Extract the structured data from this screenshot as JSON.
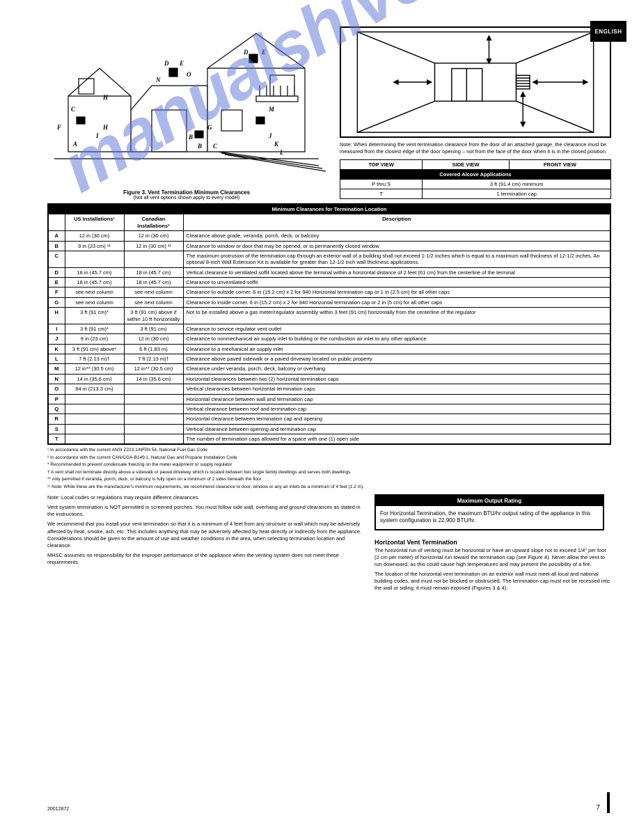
{
  "lang_tab": "ENGLISH",
  "house_fig": {
    "caption": "Figure 3. Vent Termination Minimum Clearances",
    "sub": "(Not all vent options shown apply to every model)",
    "labels": [
      "A",
      "B",
      "C",
      "D",
      "E",
      "F",
      "G",
      "H",
      "I",
      "J",
      "K",
      "L",
      "M",
      "N",
      "O"
    ]
  },
  "garage_fig": {
    "caption": "Note: When determining the vent termination clearance from the door of an attached garage, the clearance must be measured from the closest edge of the door opening – not from the face of the door when it is in the closed position.",
    "table_headers": [
      "TOP VIEW",
      "SIDE VIEW",
      "FRONT VIEW"
    ],
    "table_title": "Covered Alcove Applications",
    "row_labels": [
      "P thru S",
      "T"
    ],
    "row_vals": [
      "3 ft (91.4 cm) minimum",
      "1 termination cap"
    ]
  },
  "main_table": {
    "title": "Minimum Clearances for Termination Location",
    "head_us": "US Installations¹",
    "head_ca": "Canadian Installations²",
    "desc_header": "Description",
    "rows": [
      {
        "l": "A",
        "us": "12 in (30 cm)",
        "ca": "12 in (30 cm)",
        "d": "Clearance above grade, veranda, porch, deck, or balcony"
      },
      {
        "l": "B",
        "us": "9 in (23 cm) ¹¹",
        "ca": "12 in (30 cm) ¹¹",
        "d": "Clearance to window or door that may be opened, or to permanently closed window"
      },
      {
        "l": "C",
        "us": "",
        "ca": "",
        "d": "The maximum protrusion of the termination cap through an exterior wall of a building shall not exceed 1-1/2 inches which is equal to a maximum wall thickness of 12-1/2 inches. An optional 8-inch Wall Extension Kit is available for greater than 12-1/2 inch wall thickness applications."
      },
      {
        "l": "D",
        "us": "18 in (45.7 cm)",
        "ca": "18 in (45.7 cm)",
        "d": "Vertical clearance to ventilated soffit located above the terminal within a horizontal distance of 2 feet (61 cm) from the centerline of the terminal"
      },
      {
        "l": "E",
        "us": "18 in (45.7 cm)",
        "ca": "18 in (45.7 cm)",
        "d": "Clearance to unventilated soffit"
      },
      {
        "l": "F",
        "us": "see next column",
        "ca": "see next column",
        "d": "Clearance to outside corner. 6 in (15.2 cm) x 2 for 940 Horizontal termination cap or 1 in (2.5 cm) for all other caps"
      },
      {
        "l": "G",
        "us": "see next column",
        "ca": "see next column",
        "d": "Clearance to inside corner. 6 in (15.2 cm) x 2 for 940 Horizontal termination cap or 2 in (5 cm) for all other caps"
      },
      {
        "l": "H",
        "us": "3 ft (91 cm)*",
        "ca": "3 ft (91 cm) above if within 10 ft horizontally",
        "d": "Not to be installed above a gas meter/regulator assembly within 3 feet (91 cm) horizontally from the centerline of the regulator"
      },
      {
        "l": "I",
        "us": "3 ft (91 cm)*",
        "ca": "3 ft (91 cm)",
        "d": "Clearance to service regulator vent outlet"
      },
      {
        "l": "J",
        "us": "9 in (23 cm)",
        "ca": "12 in (30 cm)",
        "d": "Clearance to nonmechanical air supply inlet to building or the combustion air inlet to any other appliance"
      },
      {
        "l": "K",
        "us": "3 ft (91 cm) above*",
        "ca": "6 ft (1.83 m)",
        "d": "Clearance to a mechanical air supply inlet"
      },
      {
        "l": "L",
        "us": "7 ft (2.13 m)†",
        "ca": "7 ft (2.13 m)†",
        "d": "Clearance above paved sidewalk or a paved driveway located on public property"
      },
      {
        "l": "M",
        "us": "12 in** (30.5 cm)",
        "ca": "12 in** (30.5 cm)",
        "d": "Clearance under veranda, porch, deck, balcony or overhang"
      },
      {
        "l": "N",
        "us": "14 in (35.6 cm)",
        "ca": "14 in (35.6 cm)",
        "d": "Horizontal clearances between two (2) horizontal termination caps"
      },
      {
        "l": "O",
        "us": "84 in (213.3 cm)",
        "ca": "",
        "d": "Vertical clearances between horizontal termination caps"
      },
      {
        "l": "P",
        "us": "",
        "ca": "",
        "d": "Horizontal clearance between wall and termination cap"
      },
      {
        "l": "Q",
        "us": "",
        "ca": "",
        "d": "Vertical clearance between roof and termination cap"
      },
      {
        "l": "R",
        "us": "",
        "ca": "",
        "d": "Horizontal clearance between termination cap and opening"
      },
      {
        "l": "S",
        "us": "",
        "ca": "",
        "d": "Vertical clearance between opening and termination cap"
      },
      {
        "l": "T",
        "us": "",
        "ca": "",
        "d": "The number of termination caps allowed for a space with one (1) open side"
      }
    ]
  },
  "footnotes": [
    "¹ In accordance with the current ANSI Z223.1/NFPA 54, National Fuel Gas Code",
    "² In accordance with the current CAN/CGA-B149.1, Natural Gas and Propane Installation Code",
    "*  Recommended to prevent condensate freezing on the meter equipment or supply regulator",
    "†  A vent shall not terminate directly above a sidewalk or paved driveway which is located between two single family dwellings and serves both dwellings",
    "**  only permitted if veranda, porch, deck, or balcony is fully open on a minimum of 2 sides beneath the floor",
    "¹¹ Note: While these are the manufacturer's minimum requirements, we recommend clearance to door, window or any air inlets be a minimum of 4 feet (1.2 m)."
  ],
  "bottom_left": {
    "p1": "Note: Local codes or regulations may require different clearances.",
    "p2": "Vent system termination is NOT permitted in screened porches. You must follow side wall, overhang and ground clearances as stated in the instructions.",
    "p3": "We recommend that you install your vent termination so that it is a minimum of 4 feet from any structure or wall which may be adversely affected by heat, smoke, ash, etc. This includes anything that may be adversely affected by heat directly or indirectly from the appliance. Considerations should be given to the amount of use and weather conditions in the area, when selecting termination location and clearance.",
    "p4": "MHSC assumes no responsibility for the improper performance of the appliance when the venting system does not meet these requirements:",
    "hdr": "Horizontal Vent Termination",
    "p5": "The horizontal run of venting must be horizontal or have an upward slope not to exceed 1/4\" per foot (2 cm per meter) of horizontal run toward the termination cap (see Figure 4). Never allow the vent to run downward, as this could cause high temperatures and may present the possibility of a fire.",
    "p6": "The location of the horizontal vent termination on an exterior wall must meet all local and national building codes, and must not be blocked or obstructed. The termination cap must not be recessed into the wall or siding; it must remain exposed (Figures 3 & 4)."
  },
  "max_cap": {
    "hdr": "Maximum Output Rating",
    "body": "For Horizontal Termination, the maximum BTU/hr output rating of the appliance in this system configuration is 22,900 BTU/hr."
  },
  "page_num": "7",
  "manual_ref": "20012872"
}
